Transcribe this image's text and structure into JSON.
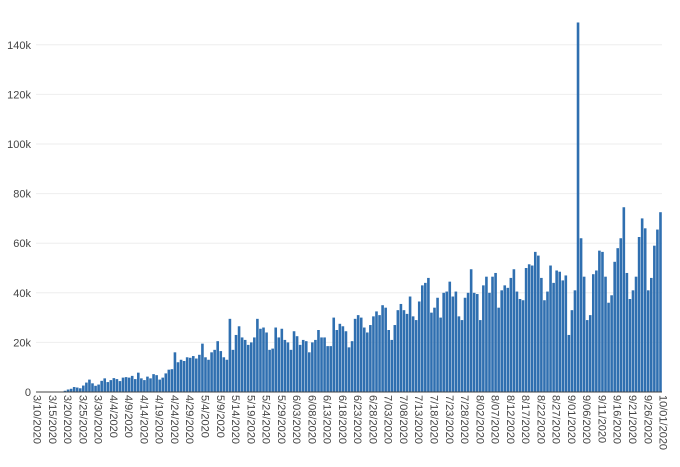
{
  "chart_data": {
    "type": "bar",
    "title": "",
    "xlabel": "",
    "ylabel": "",
    "ylim": [
      0,
      150000
    ],
    "y_ticks": [
      0,
      20000,
      40000,
      60000,
      80000,
      100000,
      120000,
      140000
    ],
    "y_tick_labels": [
      "0",
      "20k",
      "40k",
      "60k",
      "80k",
      "100k",
      "120k",
      "140k"
    ],
    "x_tick_labels": [
      "3/10/2020",
      "3/15/2020",
      "3/20/2020",
      "3/25/2020",
      "3/30/2020",
      "4/4/2020",
      "4/9/2020",
      "4/14/2020",
      "4/19/2020",
      "4/24/2020",
      "4/29/2020",
      "5/4/2020",
      "5/9/2020",
      "5/14/2020",
      "5/19/2020",
      "5/24/2020",
      "5/29/2020",
      "6/03/2020",
      "6/08/2020",
      "6/13/2020",
      "6/18/2020",
      "6/23/2020",
      "6/28/2020",
      "7/03/2020",
      "7/08/2020",
      "7/13/2020",
      "7/18/2020",
      "7/23/2020",
      "7/28/2020",
      "8/02/2020",
      "8/07/2020",
      "8/12/2020",
      "8/17/2020",
      "8/22/2020",
      "8/27/2020",
      "9/01/2020",
      "9/06/2020",
      "9/11/2020",
      "9/16/2020",
      "9/21/2020",
      "9/26/2020",
      "10/01/2020"
    ],
    "x_start": "3/10/2020",
    "grid": true,
    "bar_color": "#2f6fb0",
    "values": [
      0,
      0,
      0,
      0,
      0,
      0,
      0,
      0,
      200,
      500,
      1000,
      1300,
      2000,
      1800,
      1500,
      2600,
      3800,
      5000,
      3500,
      2500,
      3000,
      4500,
      5500,
      4000,
      4800,
      5600,
      5200,
      4400,
      5800,
      6000,
      5800,
      6500,
      5200,
      7800,
      5500,
      4800,
      6200,
      5500,
      7200,
      6800,
      5000,
      5800,
      7500,
      9000,
      9200,
      16000,
      12000,
      13000,
      12500,
      14000,
      13800,
      14500,
      13500,
      15000,
      19500,
      14000,
      13000,
      16000,
      17000,
      20500,
      16500,
      14000,
      13000,
      29500,
      17000,
      23000,
      26500,
      22000,
      21000,
      19000,
      20000,
      22000,
      29500,
      25500,
      26000,
      24000,
      17000,
      17500,
      26000,
      22000,
      25500,
      21000,
      20000,
      17000,
      24500,
      22500,
      19000,
      21000,
      20500,
      16000,
      20000,
      21000,
      25000,
      22000,
      22000,
      18500,
      18500,
      30000,
      25000,
      27500,
      26500,
      24500,
      18000,
      20500,
      29500,
      31000,
      30000,
      26000,
      24000,
      27000,
      30500,
      32500,
      31000,
      35000,
      34000,
      25000,
      21000,
      27000,
      33000,
      35500,
      33000,
      31500,
      38500,
      30500,
      29000,
      36500,
      43000,
      44000,
      46000,
      32000,
      34000,
      38000,
      30000,
      40000,
      40500,
      44500,
      38500,
      40500,
      30500,
      29000,
      38000,
      40000,
      49500,
      40000,
      39500,
      29000,
      43000,
      46500,
      40000,
      46500,
      48000,
      34000,
      41000,
      43000,
      42000,
      46000,
      49500,
      40500,
      37500,
      37000,
      50000,
      51500,
      51000,
      56500,
      55000,
      46000,
      37000,
      40500,
      51000,
      44000,
      49000,
      48500,
      45000,
      47000,
      23000,
      33000,
      41000,
      149000,
      62000,
      46500,
      29000,
      31000,
      47500,
      49000,
      57000,
      56500,
      46500,
      36000,
      39000,
      52500,
      58000,
      62000,
      74500,
      48000,
      37500,
      41000,
      46500,
      62500,
      70000,
      66000,
      41000,
      46000,
      59000,
      65500,
      72500
    ]
  }
}
